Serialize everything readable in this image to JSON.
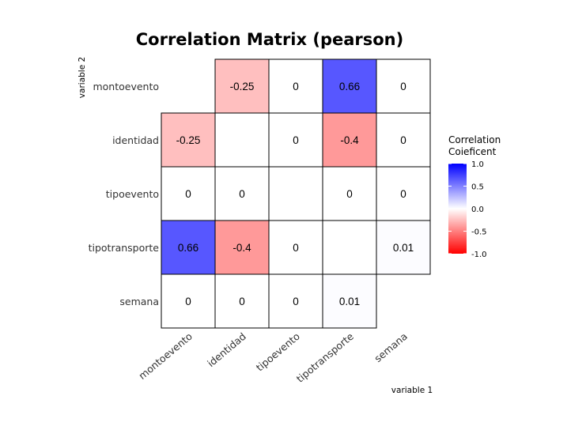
{
  "chart_data": {
    "type": "heatmap",
    "title": "Correlation Matrix (pearson)",
    "xlabel": "variable 1",
    "ylabel": "variable 2",
    "x_categories": [
      "montoevento",
      "identidad",
      "tipoevento",
      "tipotransporte",
      "semana"
    ],
    "y_categories": [
      "montoevento",
      "identidad",
      "tipoevento",
      "tipotransporte",
      "semana"
    ],
    "matrix": [
      [
        null,
        -0.25,
        0,
        0.66,
        0
      ],
      [
        -0.25,
        null,
        0,
        -0.4,
        0
      ],
      [
        0,
        0,
        null,
        0,
        0
      ],
      [
        0.66,
        -0.4,
        0,
        null,
        0.01
      ],
      [
        0,
        0,
        0,
        0.01,
        null
      ]
    ],
    "cell_labels": [
      [
        "",
        "-0.25",
        "0",
        "0.66",
        "0"
      ],
      [
        "-0.25",
        "",
        "0",
        "-0.4",
        "0"
      ],
      [
        "0",
        "0",
        "",
        "0",
        "0"
      ],
      [
        "0.66",
        "-0.4",
        "0",
        "",
        "0.01"
      ],
      [
        "0",
        "0",
        "0",
        "0.01",
        ""
      ]
    ],
    "legend": {
      "title_lines": [
        "Correlation",
        "Coieficent"
      ],
      "ticks": [
        "1.0",
        "0.5",
        "0.0",
        "-0.5",
        "-1.0"
      ],
      "tick_values": [
        1,
        0.5,
        0,
        -0.5,
        -1
      ],
      "range": [
        -1,
        1
      ],
      "placement": "right"
    },
    "colors": {
      "low": "#ff0000",
      "mid": "#ffffff",
      "high": "#0000ff"
    },
    "grid": false
  }
}
